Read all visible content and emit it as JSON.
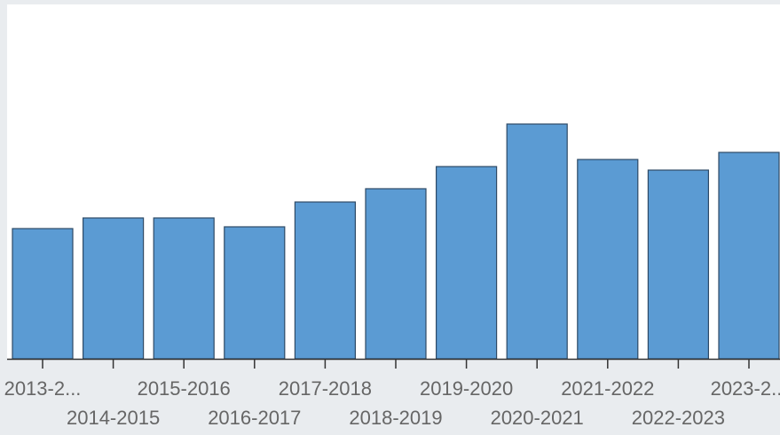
{
  "chart_data": {
    "type": "bar",
    "categories": [
      "2013-2...",
      "2014-2015",
      "2015-2016",
      "2016-2017",
      "2017-2018",
      "2018-2019",
      "2019-2020",
      "2020-2021",
      "2021-2022",
      "2022-2023",
      "2023-2..."
    ],
    "values": [
      147,
      159,
      159,
      149,
      177,
      192,
      217,
      265,
      225,
      213,
      233
    ],
    "color": "#5b9bd3",
    "ylim": [
      0,
      400
    ]
  }
}
